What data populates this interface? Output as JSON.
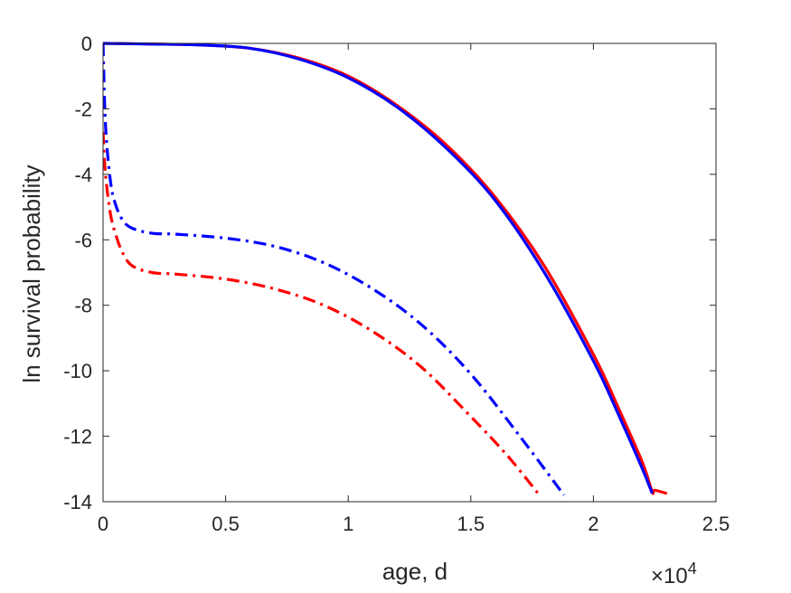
{
  "chart_data": {
    "type": "line",
    "xlabel": "age, d",
    "ylabel": "ln survival probability",
    "x_exponent_label": "×10",
    "x_exponent_power": "4",
    "x_scale_factor": 10000,
    "xlim": [
      0,
      25000
    ],
    "ylim": [
      -14,
      0
    ],
    "xticks": [
      0,
      5000,
      10000,
      15000,
      20000,
      25000
    ],
    "xtick_labels": [
      "0",
      "0.5",
      "1",
      "1.5",
      "2",
      "2.5"
    ],
    "yticks": [
      0,
      -2,
      -4,
      -6,
      -8,
      -10,
      -12,
      -14
    ],
    "ytick_labels": [
      "0",
      "-2",
      "-4",
      "-6",
      "-8",
      "-10",
      "-12",
      "-14"
    ],
    "grid": false,
    "legend": "none",
    "series": [
      {
        "color": "#ff0000",
        "line_style": "solid",
        "x": [
          0,
          2000,
          4000,
          6000,
          8000,
          10000,
          12000,
          14000,
          16000,
          18000,
          20000,
          21000,
          22000,
          22400,
          22500,
          23000
        ],
        "y": [
          0,
          -0.02,
          -0.05,
          -0.15,
          -0.45,
          -1.0,
          -1.9,
          -3.1,
          -4.7,
          -6.8,
          -9.5,
          -11.1,
          -12.8,
          -13.7,
          -13.65,
          -13.75
        ]
      },
      {
        "color": "#0000ff",
        "line_style": "solid",
        "x": [
          0,
          2000,
          4000,
          6000,
          8000,
          10000,
          12000,
          14000,
          16000,
          18000,
          20000,
          21000,
          22000,
          22400
        ],
        "y": [
          0,
          -0.02,
          -0.05,
          -0.15,
          -0.48,
          -1.05,
          -1.95,
          -3.2,
          -4.8,
          -7.0,
          -9.7,
          -11.3,
          -13.0,
          -13.75
        ]
      },
      {
        "color": "#ff0000",
        "line_style": "dashdot",
        "x": [
          0,
          100,
          300,
          500,
          800,
          1200,
          2000,
          3000,
          5000,
          7000,
          9000,
          11000,
          13000,
          15000,
          16500,
          17800
        ],
        "y": [
          -2.7,
          -4.0,
          -5.2,
          -5.8,
          -6.4,
          -6.8,
          -7.0,
          -7.05,
          -7.2,
          -7.5,
          -8.0,
          -8.8,
          -9.9,
          -11.4,
          -12.6,
          -13.8
        ]
      },
      {
        "color": "#0000ff",
        "line_style": "dashdot",
        "x": [
          0,
          100,
          300,
          500,
          800,
          1200,
          2000,
          3000,
          5000,
          7000,
          9000,
          11000,
          13000,
          15000,
          17000,
          18800
        ],
        "y": [
          0,
          -2.5,
          -4.2,
          -4.9,
          -5.4,
          -5.65,
          -5.8,
          -5.83,
          -5.95,
          -6.2,
          -6.7,
          -7.5,
          -8.6,
          -10.1,
          -12.0,
          -13.8
        ]
      }
    ]
  }
}
